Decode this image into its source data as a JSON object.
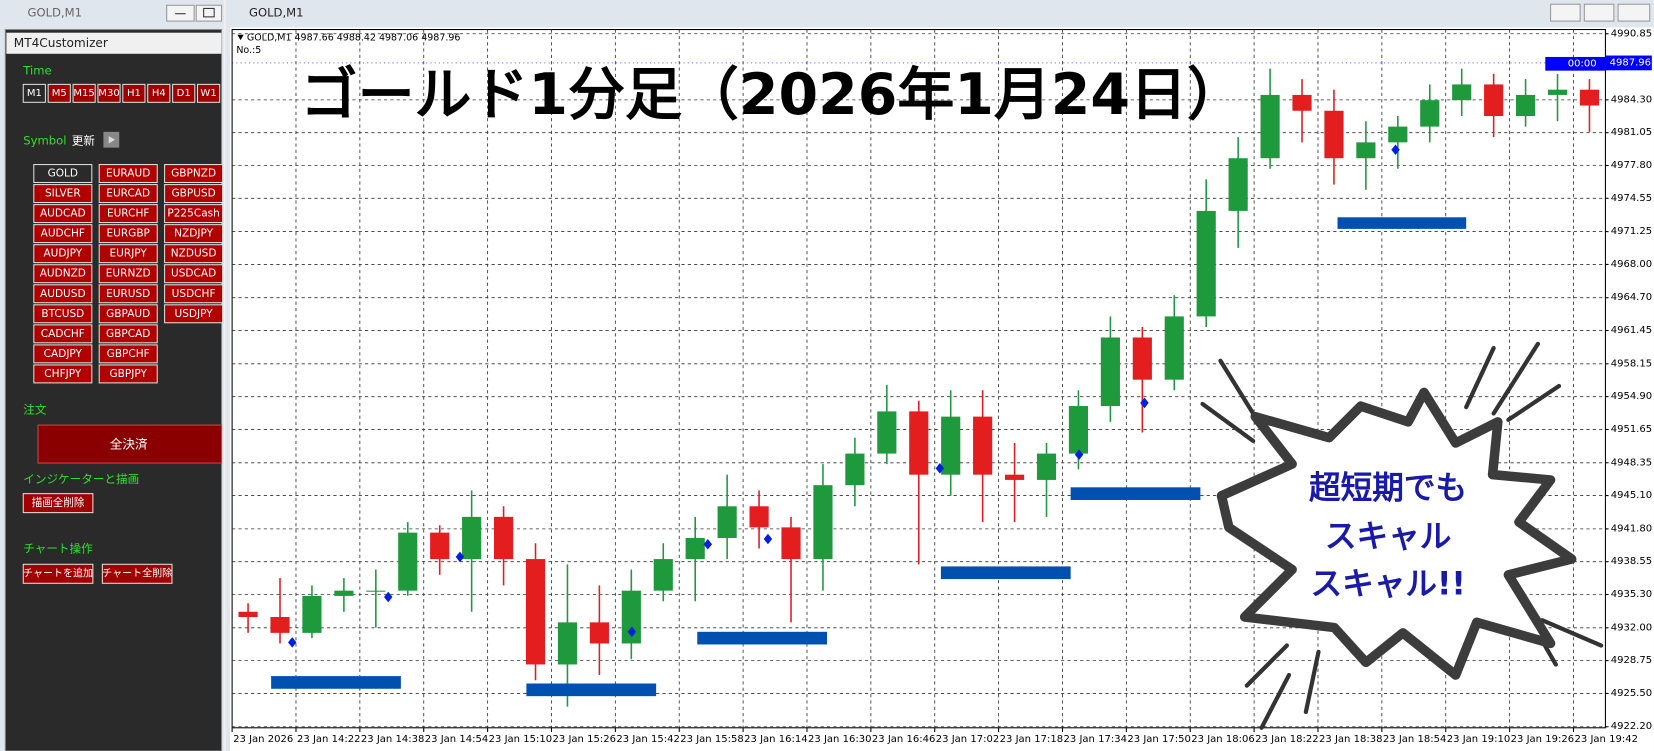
{
  "sidebar": {
    "window_title": "GOLD,M1",
    "panel_title": "MT4Customizer",
    "time_label": "Time",
    "timeframes": [
      "M1",
      "M5",
      "M15",
      "M30",
      "H1",
      "H4",
      "D1",
      "W1"
    ],
    "symbol_label": "Symbol",
    "refresh": "更新",
    "symbols": [
      [
        "GOLD",
        "SILVER",
        "AUDCAD",
        "AUDCHF",
        "AUDJPY",
        "AUDNZD",
        "AUDUSD",
        "BTCUSD",
        "CADCHF",
        "CADJPY",
        "CHFJPY"
      ],
      [
        "EURAUD",
        "EURCAD",
        "EURCHF",
        "EURGBP",
        "EURJPY",
        "EURNZD",
        "EURUSD",
        "GBPAUD",
        "GBPCAD",
        "GBPCHF",
        "GBPJPY"
      ],
      [
        "GBPNZD",
        "GBPUSD",
        "P225Cash",
        "NZDJPY",
        "NZDUSD",
        "USDCAD",
        "USDCHF",
        "USDJPY"
      ]
    ],
    "order_label": "注文",
    "close_all": "全決済",
    "indicator_label": "インジケーターと描画",
    "delete_drawings": "描画全削除",
    "chart_ops_label": "チャート操作",
    "add_chart": "チャートを追加",
    "delete_charts": "チャート全削除"
  },
  "chart_window": {
    "title": "GOLD,M1",
    "header": "GOLD,M1  4987.66 4988.42 4987.06 4987.96",
    "sub_header": "No.:5",
    "timer": "00:00",
    "callout": [
      "超短期でも",
      "スキャル",
      "スキャル!!"
    ]
  },
  "chart_data": {
    "type": "candlestick",
    "title": "ゴールド1分足（2026年1月24日）",
    "categories": [
      "23 Jan 2026",
      null,
      "23 Jan 14:22",
      null,
      "23 Jan 14:38",
      null,
      "23 Jan 14:54",
      null,
      "23 Jan 15:10",
      null,
      "23 Jan 15:26",
      null,
      "23 Jan 15:42",
      null,
      "23 Jan 15:58",
      null,
      "23 Jan 16:14",
      null,
      "23 Jan 16:30",
      null,
      "23 Jan 16:46",
      null,
      "23 Jan 17:02",
      null,
      "23 Jan 17:18",
      null,
      "23 Jan 17:34",
      null,
      "23 Jan 17:50",
      null,
      "23 Jan 18:06",
      null,
      "23 Jan 18:22",
      null,
      "23 Jan 18:38",
      null,
      "23 Jan 18:54",
      null,
      "23 Jan 19:10",
      null,
      "23 Jan 19:26",
      null,
      "23 Jan 19:42"
    ],
    "open": [
      4933.59,
      4933.07,
      4931.5,
      4935.16,
      4935.68,
      4935.68,
      4941.43,
      4938.81,
      4942.99,
      4938.81,
      4928.37,
      4932.54,
      4930.45,
      4935.68,
      4938.81,
      4940.9,
      4944.04,
      4941.95,
      4938.81,
      4946.13,
      4949.26,
      4953.44,
      4947.17,
      4952.92,
      4947.17,
      4946.65,
      4949.26,
      4953.97,
      4960.76,
      4956.58,
      4962.85,
      4973.3,
      4978.52,
      4984.79,
      4983.22,
      4978.52,
      4980.09,
      4981.65,
      4984.27,
      4985.83,
      4982.7,
      4984.79,
      4985.31
    ],
    "high": [
      4934.43,
      4936.93,
      4936.2,
      4936.93,
      4937.77,
      4942.47,
      4942.16,
      4945.61,
      4944.04,
      4940.38,
      4938.29,
      4936.2,
      4937.77,
      4940.38,
      4942.99,
      4947.17,
      4945.61,
      4942.99,
      4948.22,
      4950.83,
      4956.06,
      4954.49,
      4955.53,
      4955.53,
      4950.31,
      4950.31,
      4955.53,
      4962.85,
      4961.8,
      4964.94,
      4976.43,
      4980.61,
      4987.4,
      4986.36,
      4985.31,
      4982.18,
      4982.7,
      4985.83,
      4987.4,
      4986.88,
      4986.36,
      4986.88,
      4986.36
    ],
    "low": [
      4931.5,
      4930.45,
      4930.98,
      4933.59,
      4932.02,
      4935.16,
      4937.25,
      4933.59,
      4936.2,
      4926.8,
      4924.19,
      4927.32,
      4928.89,
      4934.63,
      4934.63,
      4938.81,
      4939.86,
      4932.54,
      4935.68,
      4944.04,
      4948.22,
      4938.29,
      4945.08,
      4942.47,
      4942.47,
      4942.99,
      4947.7,
      4952.4,
      4951.35,
      4955.53,
      4961.8,
      4969.64,
      4977.48,
      4980.09,
      4975.91,
      4975.39,
      4977.48,
      4980.09,
      4982.7,
      4980.61,
      4981.65,
      4982.18,
      4981.13
    ],
    "close": [
      4933.07,
      4931.5,
      4935.16,
      4935.68,
      4935.68,
      4941.43,
      4938.81,
      4942.99,
      4938.81,
      4928.37,
      4932.54,
      4930.45,
      4935.68,
      4938.81,
      4940.9,
      4944.04,
      4941.95,
      4938.81,
      4946.13,
      4949.26,
      4953.44,
      4947.17,
      4952.92,
      4947.17,
      4946.65,
      4949.26,
      4953.97,
      4960.76,
      4956.58,
      4962.85,
      4973.3,
      4978.52,
      4984.79,
      4983.22,
      4978.52,
      4980.09,
      4981.65,
      4984.27,
      4985.83,
      4982.7,
      4984.79,
      4985.31,
      4983.74
    ],
    "up_color": "#1e9a3c",
    "down_color": "#e41e1e",
    "ylim": [
      4922.2,
      4990.85
    ],
    "yticks": [
      {
        "value": 4922.2,
        "label": "4922.20"
      },
      {
        "value": 4925.5,
        "label": "4925.50"
      },
      {
        "value": 4928.75,
        "label": "4928.75"
      },
      {
        "value": 4932,
        "label": "4932.00"
      },
      {
        "value": 4935.3,
        "label": "4935.30"
      },
      {
        "value": 4938.55,
        "label": "4938.55"
      },
      {
        "value": 4941.8,
        "label": "4941.80"
      },
      {
        "value": 4945.1,
        "label": "4945.10"
      },
      {
        "value": 4948.35,
        "label": "4948.35"
      },
      {
        "value": 4951.65,
        "label": "4951.65"
      },
      {
        "value": 4954.9,
        "label": "4954.90"
      },
      {
        "value": 4958.15,
        "label": "4958.15"
      },
      {
        "value": 4961.45,
        "label": "4961.45"
      },
      {
        "value": 4964.7,
        "label": "4964.70"
      },
      {
        "value": 4968,
        "label": "4968.00"
      },
      {
        "value": 4971.25,
        "label": "4971.25"
      },
      {
        "value": 4974.55,
        "label": "4974.55"
      },
      {
        "value": 4977.8,
        "label": "4977.80"
      },
      {
        "value": 4981.05,
        "label": "4981.05"
      },
      {
        "value": 4984.3,
        "label": "4984.30"
      },
      {
        "value": 4990.85,
        "label": "4990.85"
      }
    ],
    "grid": true,
    "current_price": 4987.96
  }
}
